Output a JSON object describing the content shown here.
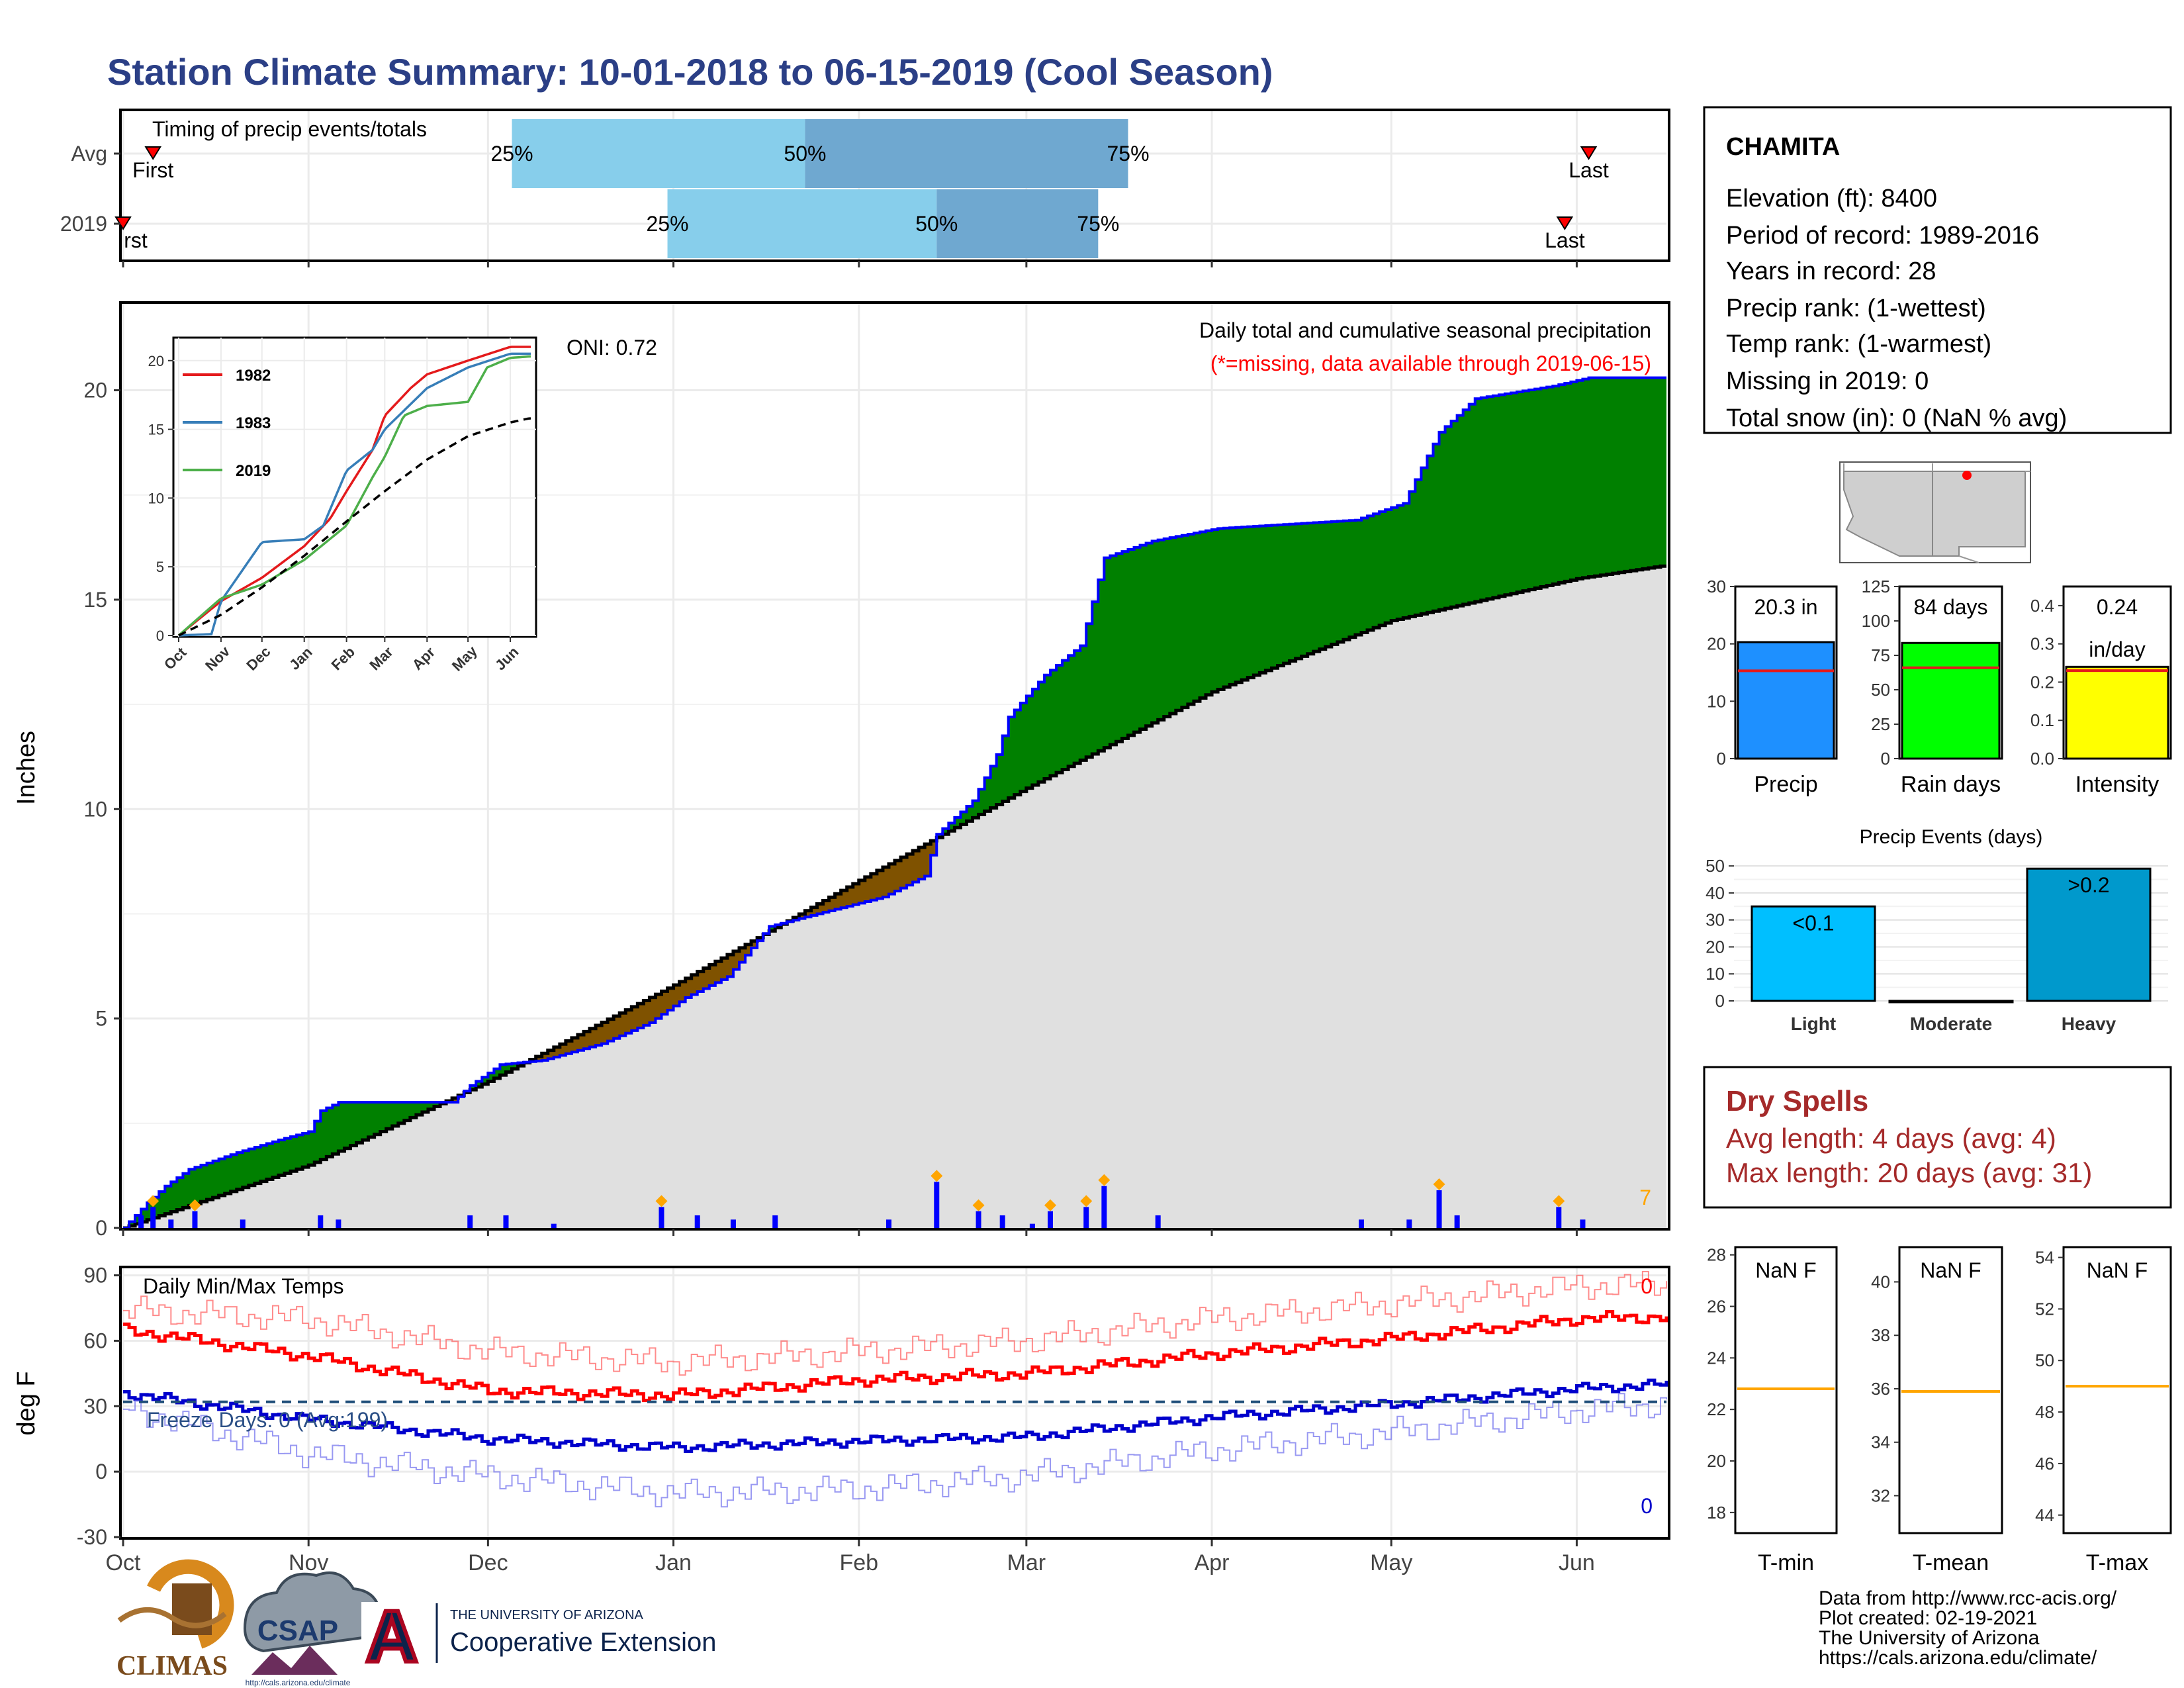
{
  "title": "Station Climate Summary: 10-01-2018 to 06-15-2019 (Cool Season)",
  "colors": {
    "title": "#2b3f86",
    "q1": "#87ceeb",
    "q2": "#6fa8d0",
    "cum_line": "#0000ff",
    "above": "#008000",
    "below": "#7f5200",
    "avg_fill": "#e0e0e0",
    "tmax": "#ff0000",
    "tmin": "#0000cc",
    "dry": "#a52a2a",
    "event": "#ffa500"
  },
  "timing": {
    "title": "Timing of precip events/totals",
    "rows": [
      {
        "label": "Avg",
        "first_label": "First",
        "last_label": "Last",
        "first": "2018-10-06",
        "q25": "2018-12-05",
        "q50": "2019-01-23",
        "q75": "2019-03-18",
        "last": "2019-06-03"
      },
      {
        "label": "2019",
        "first_label": "rst",
        "last_label": "Last",
        "first": "2018-10-01",
        "q25": "2018-12-31",
        "q50": "2019-02-14",
        "q75": "2019-03-13",
        "last": "2019-05-30"
      }
    ],
    "q_labels": [
      "25%",
      "50%",
      "75%"
    ]
  },
  "main": {
    "ylabel": "Inches",
    "title": "Daily total and cumulative seasonal precipitation",
    "subtitle": "(*=missing, data available through 2019-06-15)",
    "oni": "ONI: 0.72",
    "corner_count": "7",
    "y_ticks": [
      0,
      5,
      10,
      15,
      20
    ],
    "ylim": [
      0,
      22
    ]
  },
  "temps": {
    "title": "Daily Min/Max Temps",
    "ylabel": "deg F",
    "freeze": "Freeze Days: 0 (Avg:199)",
    "max_count": "0",
    "min_count": "0",
    "y_ticks": [
      -30,
      0,
      30,
      60,
      90
    ],
    "ylim": [
      -30,
      92
    ],
    "freeze_line": 32
  },
  "months": [
    "Oct",
    "Nov",
    "Dec",
    "Jan",
    "Feb",
    "Mar",
    "Apr",
    "May",
    "Jun"
  ],
  "inset": {
    "legend": [
      "1982",
      "1983",
      "2019"
    ],
    "colors": [
      "#e41a1c",
      "#377eb8",
      "#4daf4a"
    ],
    "y_ticks": [
      0,
      5,
      10,
      15,
      20
    ],
    "months": [
      "Oct",
      "Nov",
      "Dec",
      "Jan",
      "Feb",
      "Mar",
      "Apr",
      "May",
      "Jun"
    ]
  },
  "station": {
    "name": "CHAMITA",
    "lines": [
      "Elevation (ft): 8400",
      "Period of record: 1989-2016",
      "Years in record: 28",
      "Precip rank:  (1-wettest)",
      "Temp rank:  (1-warmest)",
      "Missing in 2019: 0",
      "Total snow (in): 0 (NaN % avg)"
    ]
  },
  "bars": [
    {
      "label": "Precip",
      "value_label": "20.3 in",
      "value": 20.3,
      "avg": 15.3,
      "ymax": 30,
      "ticks": [
        0,
        10,
        20,
        30
      ],
      "color": "#1e90ff"
    },
    {
      "label": "Rain days",
      "value_label": "84 days",
      "value": 84,
      "avg": 66,
      "ymax": 125,
      "ticks": [
        0,
        25,
        50,
        75,
        100,
        125
      ],
      "color": "#00ff00"
    },
    {
      "label": "Intensity",
      "value_label": "0.24",
      "value_label2": "in/day",
      "value": 0.24,
      "avg": 0.23,
      "ymax": 0.45,
      "ticks": [
        "0.0",
        "0.1",
        "0.2",
        "0.3",
        "0.4"
      ],
      "color": "#ffff00"
    }
  ],
  "events": {
    "title": "Precip Events (days)",
    "categories": [
      "Light",
      "Moderate",
      "Heavy"
    ],
    "values": [
      35,
      0,
      49
    ],
    "labels": [
      "<0.1",
      "",
      ">0.2"
    ],
    "colors": [
      "#00bfff",
      "#00bfff",
      "#0099cc"
    ],
    "ticks": [
      0,
      10,
      20,
      30,
      40,
      50
    ]
  },
  "dry": {
    "title": "Dry Spells",
    "avg": "Avg length: 4 days (avg: 4)",
    "max": "Max length: 20 days (avg: 31)"
  },
  "tpanels": [
    {
      "label": "T-min",
      "value": "NaN F",
      "ticks": [
        18,
        20,
        22,
        24,
        26,
        28
      ],
      "ylim": [
        17.2,
        28.3
      ],
      "avg": 22.8
    },
    {
      "label": "T-mean",
      "value": "NaN F",
      "ticks": [
        32,
        34,
        36,
        38,
        40
      ],
      "ylim": [
        30.6,
        41.3
      ],
      "avg": 35.9
    },
    {
      "label": "T-max",
      "value": "NaN F",
      "ticks": [
        44,
        46,
        48,
        50,
        52,
        54
      ],
      "ylim": [
        43.3,
        54.4
      ],
      "avg": 49.0
    }
  ],
  "footer": {
    "lines": [
      "Data from http://www.rcc-acis.org/",
      "Plot created: 02-19-2021",
      "The University of Arizona",
      "https://cals.arizona.edu/climate/"
    ],
    "climas": "CLIMAS",
    "csap": "CSAP",
    "csap_url": "http://cals.arizona.edu/climate",
    "ua_small": "THE UNIVERSITY OF ARIZONA",
    "ua_big": "Cooperative Extension",
    "ua_letter": "A"
  },
  "chart_data": [
    {
      "type": "line",
      "title": "Daily total and cumulative seasonal precipitation",
      "ylabel": "Inches",
      "ylim": [
        0,
        22
      ],
      "x_unit": "date",
      "series": [
        {
          "points": [
            [
              "2018-10-01",
              0
            ],
            [
              "2018-10-05",
              0.6
            ],
            [
              "2018-10-08",
              1.0
            ],
            [
              "2018-10-12",
              1.4
            ],
            [
              "2018-10-20",
              1.8
            ],
            [
              "2018-10-27",
              2.1
            ],
            [
              "2018-11-01",
              2.3
            ],
            [
              "2018-11-03",
              2.8
            ],
            [
              "2018-11-06",
              3.0
            ],
            [
              "2018-11-25",
              3.0
            ],
            [
              "2018-11-28",
              3.4
            ],
            [
              "2018-12-03",
              3.9
            ],
            [
              "2018-12-10",
              4.0
            ],
            [
              "2018-12-20",
              4.4
            ],
            [
              "2018-12-28",
              4.9
            ],
            [
              "2019-01-03",
              5.5
            ],
            [
              "2019-01-10",
              6.0
            ],
            [
              "2019-01-17",
              7.2
            ],
            [
              "2019-01-25",
              7.5
            ],
            [
              "2019-02-05",
              7.9
            ],
            [
              "2019-02-12",
              8.4
            ],
            [
              "2019-02-14",
              9.4
            ],
            [
              "2019-02-20",
              10.2
            ],
            [
              "2019-02-24",
              11.3
            ],
            [
              "2019-02-26",
              12.2
            ],
            [
              "2019-03-04",
              13.2
            ],
            [
              "2019-03-10",
              13.9
            ],
            [
              "2019-03-14",
              16.0
            ],
            [
              "2019-03-22",
              16.4
            ],
            [
              "2019-04-02",
              16.7
            ],
            [
              "2019-04-25",
              16.9
            ],
            [
              "2019-05-03",
              17.3
            ],
            [
              "2019-05-09",
              19.0
            ],
            [
              "2019-05-15",
              19.8
            ],
            [
              "2019-05-28",
              20.1
            ],
            [
              "2019-06-03",
              20.3
            ],
            [
              "2019-06-15",
              20.3
            ]
          ]
        },
        {
          "points": [
            [
              "2018-10-01",
              0
            ],
            [
              "2018-11-01",
              1.5
            ],
            [
              "2018-12-01",
              3.5
            ],
            [
              "2019-01-01",
              5.8
            ],
            [
              "2019-02-01",
              8.3
            ],
            [
              "2019-03-01",
              10.5
            ],
            [
              "2019-04-01",
              12.8
            ],
            [
              "2019-05-01",
              14.5
            ],
            [
              "2019-06-01",
              15.5
            ],
            [
              "2019-06-15",
              15.8
            ]
          ]
        }
      ],
      "daily": [
        [
          "2018-10-04",
          0.3
        ],
        [
          "2018-10-06",
          0.5
        ],
        [
          "2018-10-09",
          0.2
        ],
        [
          "2018-10-13",
          0.4
        ],
        [
          "2018-10-21",
          0.2
        ],
        [
          "2018-11-03",
          0.3
        ],
        [
          "2018-11-06",
          0.2
        ],
        [
          "2018-11-28",
          0.3
        ],
        [
          "2018-12-04",
          0.3
        ],
        [
          "2018-12-12",
          0.1
        ],
        [
          "2018-12-30",
          0.5
        ],
        [
          "2019-01-05",
          0.3
        ],
        [
          "2019-01-11",
          0.2
        ],
        [
          "2019-01-18",
          0.3
        ],
        [
          "2019-02-06",
          0.2
        ],
        [
          "2019-02-14",
          1.1
        ],
        [
          "2019-02-21",
          0.4
        ],
        [
          "2019-02-25",
          0.3
        ],
        [
          "2019-03-02",
          0.1
        ],
        [
          "2019-03-05",
          0.4
        ],
        [
          "2019-03-11",
          0.5
        ],
        [
          "2019-03-14",
          1.0
        ],
        [
          "2019-03-23",
          0.3
        ],
        [
          "2019-04-26",
          0.2
        ],
        [
          "2019-05-04",
          0.2
        ],
        [
          "2019-05-09",
          0.9
        ],
        [
          "2019-05-12",
          0.3
        ],
        [
          "2019-05-29",
          0.5
        ],
        [
          "2019-06-02",
          0.2
        ]
      ]
    },
    {
      "type": "line",
      "title": "Daily Min/Max Temps",
      "ylabel": "deg F",
      "ylim": [
        -30,
        92
      ],
      "series": [
        {
          "points": [
            [
              "2018-10-01",
              65
            ],
            [
              "2018-11-01",
              53
            ],
            [
              "2018-12-01",
              37
            ],
            [
              "2019-01-01",
              35
            ],
            [
              "2019-02-01",
              42
            ],
            [
              "2019-03-01",
              45
            ],
            [
              "2019-04-01",
              54
            ],
            [
              "2019-05-01",
              61
            ],
            [
              "2019-06-01",
              70
            ],
            [
              "2019-06-15",
              71
            ]
          ]
        },
        {
          "points": [
            [
              "2018-10-01",
              36
            ],
            [
              "2018-11-01",
              24
            ],
            [
              "2018-12-01",
              15
            ],
            [
              "2019-01-01",
              11
            ],
            [
              "2019-02-01",
              14
            ],
            [
              "2019-03-01",
              16
            ],
            [
              "2019-04-01",
              25
            ],
            [
              "2019-05-01",
              31
            ],
            [
              "2019-06-01",
              38
            ],
            [
              "2019-06-15",
              40
            ]
          ]
        },
        {
          "points": [
            [
              "2018-10-01",
              74
            ],
            [
              "2018-11-01",
              70
            ],
            [
              "2018-12-01",
              55
            ],
            [
              "2019-01-01",
              50
            ],
            [
              "2019-02-01",
              55
            ],
            [
              "2019-03-01",
              60
            ],
            [
              "2019-04-01",
              70
            ],
            [
              "2019-05-01",
              77
            ],
            [
              "2019-06-01",
              85
            ],
            [
              "2019-06-15",
              86
            ]
          ]
        },
        {
          "points": [
            [
              "2018-10-01",
              29
            ],
            [
              "2018-11-01",
              8
            ],
            [
              "2018-12-01",
              -2
            ],
            [
              "2019-01-01",
              -10
            ],
            [
              "2019-02-01",
              -8
            ],
            [
              "2019-03-01",
              -2
            ],
            [
              "2019-04-01",
              10
            ],
            [
              "2019-05-01",
              18
            ],
            [
              "2019-06-01",
              28
            ],
            [
              "2019-06-15",
              31
            ]
          ]
        }
      ]
    },
    {
      "type": "line",
      "ylim": [
        0,
        21
      ],
      "series": [
        {
          "name": "1982",
          "points": [
            [
              "2018-10-01",
              0
            ],
            [
              "2018-11-01",
              2.5
            ],
            [
              "2018-12-01",
              4.2
            ],
            [
              "2019-01-01",
              6.5
            ],
            [
              "2019-01-20",
              8.5
            ],
            [
              "2019-02-01",
              10.5
            ],
            [
              "2019-02-20",
              13.5
            ],
            [
              "2019-03-01",
              16.0
            ],
            [
              "2019-03-20",
              18.0
            ],
            [
              "2019-04-01",
              19.0
            ],
            [
              "2019-05-01",
              20.0
            ],
            [
              "2019-06-01",
              21.0
            ],
            [
              "2019-06-15",
              21.0
            ]
          ]
        },
        {
          "name": "1983",
          "points": [
            [
              "2018-10-01",
              0
            ],
            [
              "2018-10-25",
              0.1
            ],
            [
              "2018-11-01",
              2.5
            ],
            [
              "2018-12-01",
              6.8
            ],
            [
              "2019-01-01",
              7.0
            ],
            [
              "2019-01-15",
              8.0
            ],
            [
              "2019-02-01",
              12.0
            ],
            [
              "2019-02-20",
              13.5
            ],
            [
              "2019-03-01",
              15.0
            ],
            [
              "2019-04-01",
              18.0
            ],
            [
              "2019-05-01",
              19.5
            ],
            [
              "2019-06-01",
              20.5
            ],
            [
              "2019-06-15",
              20.5
            ]
          ]
        },
        {
          "name": "2019",
          "points": [
            [
              "2018-10-01",
              0
            ],
            [
              "2018-11-01",
              2.7
            ],
            [
              "2018-12-01",
              3.7
            ],
            [
              "2019-01-01",
              5.5
            ],
            [
              "2019-02-01",
              8.0
            ],
            [
              "2019-02-20",
              11.5
            ],
            [
              "2019-03-01",
              13.0
            ],
            [
              "2019-03-15",
              16.0
            ],
            [
              "2019-04-01",
              16.7
            ],
            [
              "2019-05-01",
              17.0
            ],
            [
              "2019-05-15",
              19.5
            ],
            [
              "2019-06-01",
              20.2
            ],
            [
              "2019-06-15",
              20.3
            ]
          ]
        },
        {
          "points": [
            [
              "2018-10-01",
              0
            ],
            [
              "2018-11-01",
              1.5
            ],
            [
              "2018-12-01",
              3.5
            ],
            [
              "2019-01-01",
              5.8
            ],
            [
              "2019-02-01",
              8.3
            ],
            [
              "2019-03-01",
              10.5
            ],
            [
              "2019-04-01",
              12.8
            ],
            [
              "2019-05-01",
              14.5
            ],
            [
              "2019-06-01",
              15.5
            ],
            [
              "2019-06-15",
              15.8
            ]
          ]
        }
      ]
    },
    {
      "type": "bar",
      "categories": [
        "Precip",
        "Rain days",
        "Intensity"
      ],
      "values": [
        20.3,
        84,
        0.24
      ],
      "series": [
        {
          "values": [
            15.3,
            66,
            0.23
          ]
        }
      ]
    },
    {
      "type": "bar",
      "title": "Precip Events (days)",
      "categories": [
        "Light",
        "Moderate",
        "Heavy"
      ],
      "values": [
        35,
        0,
        49
      ]
    }
  ]
}
